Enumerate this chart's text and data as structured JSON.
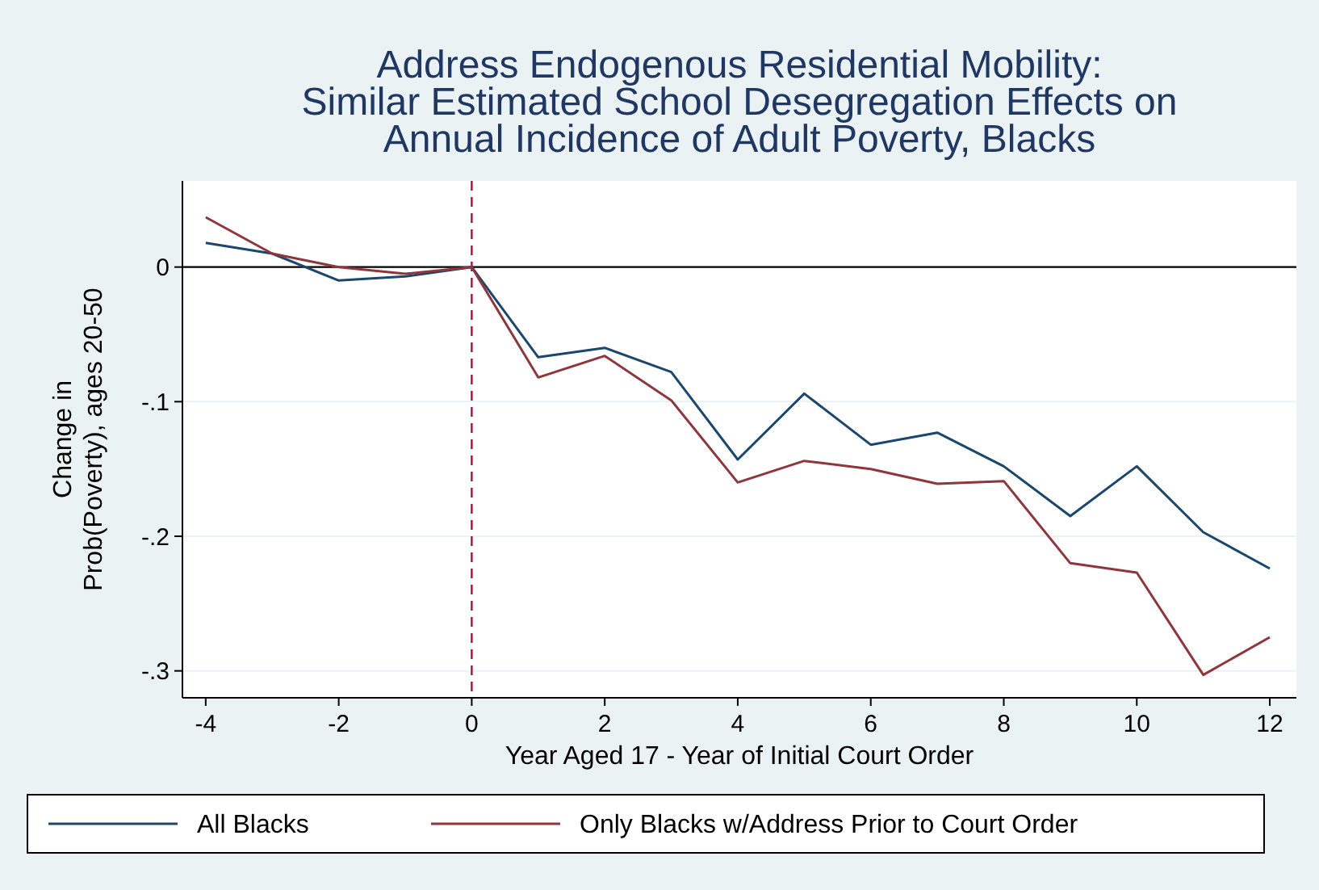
{
  "chart_data": {
    "type": "line",
    "title": "Address Endogenous Residential Mobility:\nSimilar Estimated School Desegregation Effects on\nAnnual Incidence of Adult Poverty, Blacks",
    "xlabel": "Year Aged 17 - Year of Initial Court Order",
    "ylabel": "Change in\nProb(Poverty), ages 20-50",
    "x": [
      -4,
      -3,
      -2,
      -1,
      0,
      1,
      2,
      3,
      4,
      5,
      6,
      7,
      8,
      9,
      10,
      11,
      12
    ],
    "series": [
      {
        "name": "All Blacks",
        "color": "#1a476f",
        "values": [
          0.018,
          0.01,
          -0.01,
          -0.007,
          0,
          -0.067,
          -0.06,
          -0.078,
          -0.143,
          -0.094,
          -0.132,
          -0.123,
          -0.148,
          -0.185,
          -0.148,
          -0.197,
          -0.224
        ]
      },
      {
        "name": "Only Blacks w/Address Prior to Court Order",
        "color": "#90353b",
        "values": [
          0.037,
          0.01,
          0,
          -0.005,
          0,
          -0.082,
          -0.066,
          -0.099,
          -0.16,
          -0.144,
          -0.15,
          -0.161,
          -0.159,
          -0.22,
          -0.227,
          -0.303,
          -0.275
        ]
      }
    ],
    "xlim": [
      -4.35,
      12.4
    ],
    "xticks": [
      -4,
      -2,
      0,
      2,
      4,
      6,
      8,
      10,
      12
    ],
    "ylim": [
      -0.32,
      0.064
    ],
    "yticks": [
      {
        "value": -0.3,
        "label": "-.3"
      },
      {
        "value": -0.2,
        "label": "-.2"
      },
      {
        "value": -0.1,
        "label": "-.1"
      },
      0
    ],
    "ref_lines": [
      {
        "axis": "y",
        "value": 0,
        "color": "#000000",
        "line_style": "solid"
      },
      {
        "axis": "x",
        "value": 0,
        "color": "#c10534",
        "line_style": "dashed"
      }
    ],
    "grid": "y",
    "legend": "bottom",
    "marker": "none",
    "line_style": "solid"
  }
}
